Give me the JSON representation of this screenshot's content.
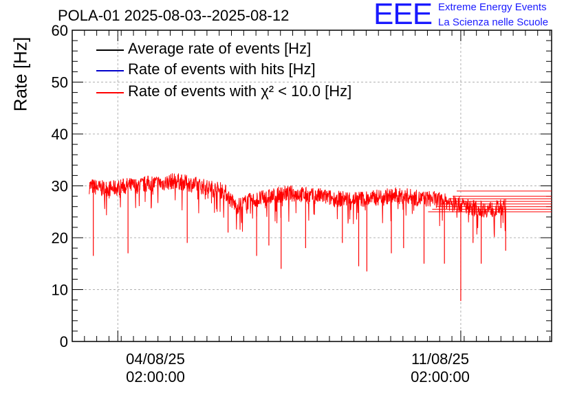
{
  "chart_data": {
    "type": "line",
    "title": "POLA-01 2025-08-03--2025-08-12",
    "ylabel": "Rate [Hz]",
    "xlabel": "",
    "ylim": [
      0,
      60
    ],
    "yticks": [
      "0",
      "10",
      "20",
      "30",
      "40",
      "50",
      "60"
    ],
    "xlim": [
      "2025-08-03 03:40",
      "2025-08-12 22:30"
    ],
    "xticks": [
      {
        "date": "2025-08-04 02:00",
        "line1": "04/08/25",
        "line2": "02:00:00"
      },
      {
        "date": "2025-08-11 02:00",
        "line1": "11/08/25",
        "line2": "02:00:00"
      }
    ],
    "grid": true,
    "legend_position": "top-left",
    "series": [
      {
        "name": "Average rate of events [Hz]",
        "color": "#000000",
        "values": []
      },
      {
        "name": "Rate of events with hits [Hz]",
        "color": "#0000cc",
        "values": []
      },
      {
        "name": "Rate of events with χ² < 10.0 [Hz]",
        "color": "#ff0000",
        "x": [
          "2025-08-03 12:00",
          "2025-08-03 18:00",
          "2025-08-04 00:00",
          "2025-08-04 06:00",
          "2025-08-04 12:00",
          "2025-08-04 18:00",
          "2025-08-05 00:00",
          "2025-08-05 06:00",
          "2025-08-05 12:00",
          "2025-08-05 18:00",
          "2025-08-06 00:00",
          "2025-08-06 06:00",
          "2025-08-06 12:00",
          "2025-08-06 18:00",
          "2025-08-07 00:00",
          "2025-08-07 06:00",
          "2025-08-07 12:00",
          "2025-08-07 18:00",
          "2025-08-08 00:00",
          "2025-08-08 06:00",
          "2025-08-08 12:00",
          "2025-08-08 18:00",
          "2025-08-09 00:00",
          "2025-08-09 06:00",
          "2025-08-09 12:00",
          "2025-08-09 18:00",
          "2025-08-10 00:00",
          "2025-08-10 06:00",
          "2025-08-10 12:00",
          "2025-08-10 18:00",
          "2025-08-11 00:00",
          "2025-08-11 06:00",
          "2025-08-11 12:00",
          "2025-08-11 18:00",
          "2025-08-12 00:00"
        ],
        "values": [
          30,
          29.5,
          29.5,
          30,
          30,
          30.5,
          30.5,
          31,
          30.5,
          30,
          29.5,
          29,
          26,
          27,
          27.5,
          28,
          28.5,
          28.5,
          28,
          28,
          27.5,
          27.5,
          27.5,
          27.5,
          28,
          28,
          28,
          27.5,
          27.5,
          27,
          26.5,
          26,
          25.5,
          25.5,
          26
        ],
        "dips": [
          {
            "x": "2025-08-03 14:00",
            "y": 16.5
          },
          {
            "x": "2025-08-04 07:00",
            "y": 17
          },
          {
            "x": "2025-08-05 12:00",
            "y": 19
          },
          {
            "x": "2025-08-06 08:00",
            "y": 21
          },
          {
            "x": "2025-08-06 22:00",
            "y": 16.5
          },
          {
            "x": "2025-08-07 04:00",
            "y": 18.5
          },
          {
            "x": "2025-08-07 10:00",
            "y": 14
          },
          {
            "x": "2025-08-07 22:00",
            "y": 18
          },
          {
            "x": "2025-08-08 16:00",
            "y": 19
          },
          {
            "x": "2025-08-09 00:00",
            "y": 14.5
          },
          {
            "x": "2025-08-09 04:00",
            "y": 13.5
          },
          {
            "x": "2025-08-09 16:00",
            "y": 17
          },
          {
            "x": "2025-08-09 22:00",
            "y": 18
          },
          {
            "x": "2025-08-10 08:00",
            "y": 15
          },
          {
            "x": "2025-08-10 18:00",
            "y": 15
          },
          {
            "x": "2025-08-11 02:00",
            "y": 7.8
          },
          {
            "x": "2025-08-11 08:00",
            "y": 19
          },
          {
            "x": "2025-08-11 12:00",
            "y": 15
          },
          {
            "x": "2025-08-12 00:00",
            "y": 17.5
          }
        ],
        "tail_levels": [
          29,
          28,
          27.5,
          27,
          26.5,
          26,
          25.5,
          25
        ]
      }
    ]
  },
  "logo": {
    "mark": "EEE",
    "line1": "Extreme Energy Events",
    "line2": "La Scienza nelle Scuole"
  }
}
